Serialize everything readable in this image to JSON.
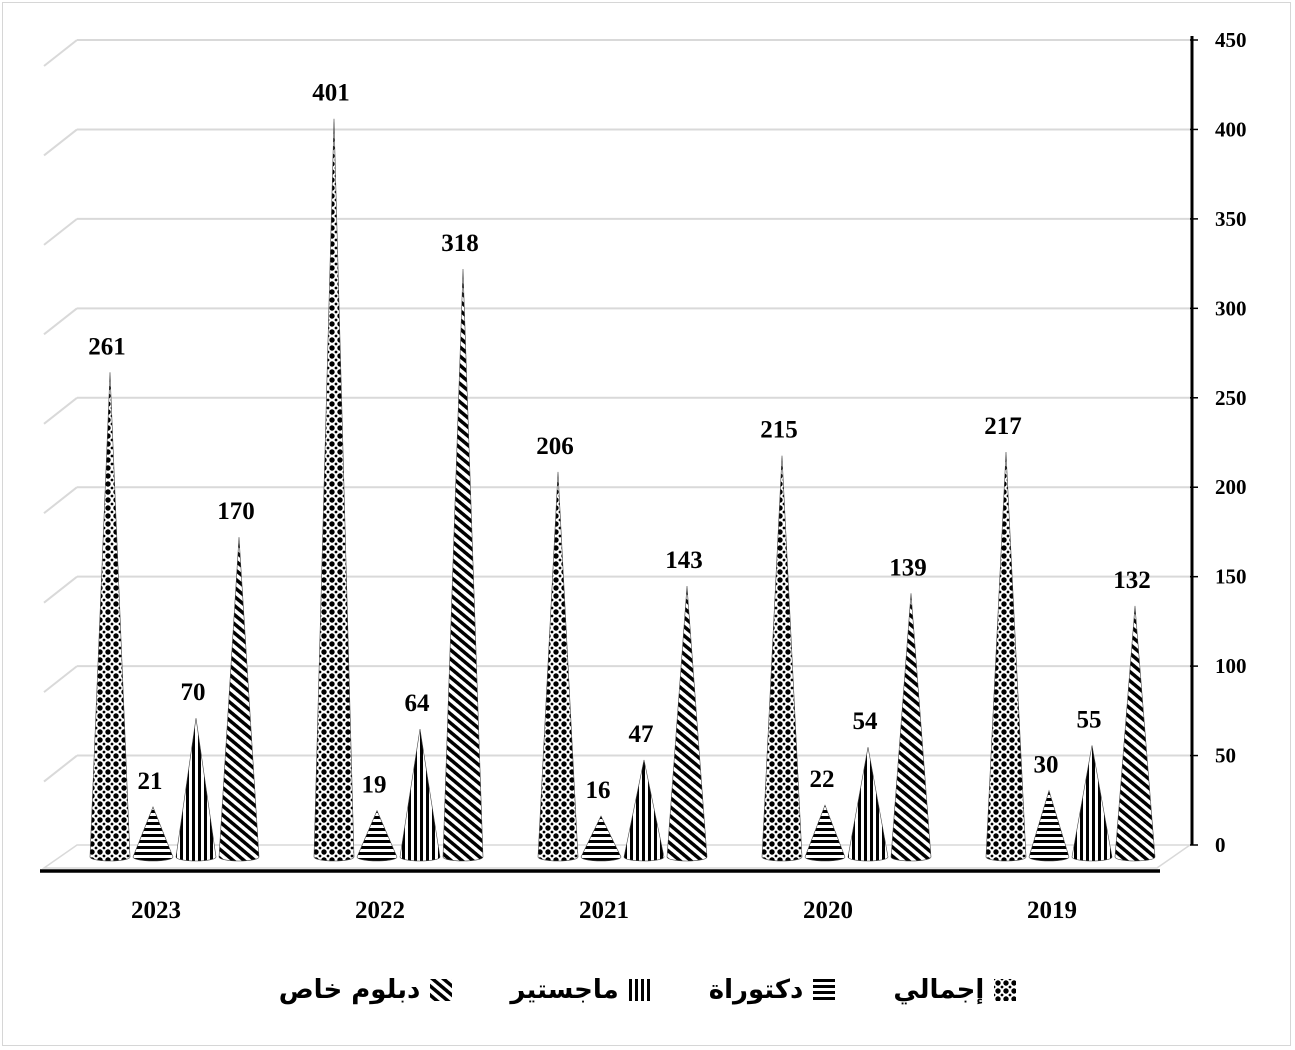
{
  "chart_data": {
    "type": "bar",
    "categories": [
      "2023",
      "2022",
      "2021",
      "2020",
      "2019"
    ],
    "series": [
      {
        "name": "إجمالي",
        "values": [
          261,
          401,
          206,
          215,
          217
        ]
      },
      {
        "name": "دكتوراة",
        "values": [
          21,
          19,
          16,
          22,
          30
        ]
      },
      {
        "name": "ماجستير",
        "values": [
          70,
          64,
          47,
          54,
          55
        ]
      },
      {
        "name": "دبلوم خاص",
        "values": [
          170,
          318,
          143,
          139,
          132
        ]
      }
    ],
    "ylim": [
      0,
      450
    ],
    "yticks": [
      "0",
      "50",
      "100",
      "150",
      "200",
      "250",
      "300",
      "350",
      "400",
      "450"
    ],
    "y_axis_side": "right",
    "grid": true,
    "legend_position": "bottom",
    "colors": {
      "ink": "#000000",
      "grid": "#d9d9d9"
    }
  }
}
